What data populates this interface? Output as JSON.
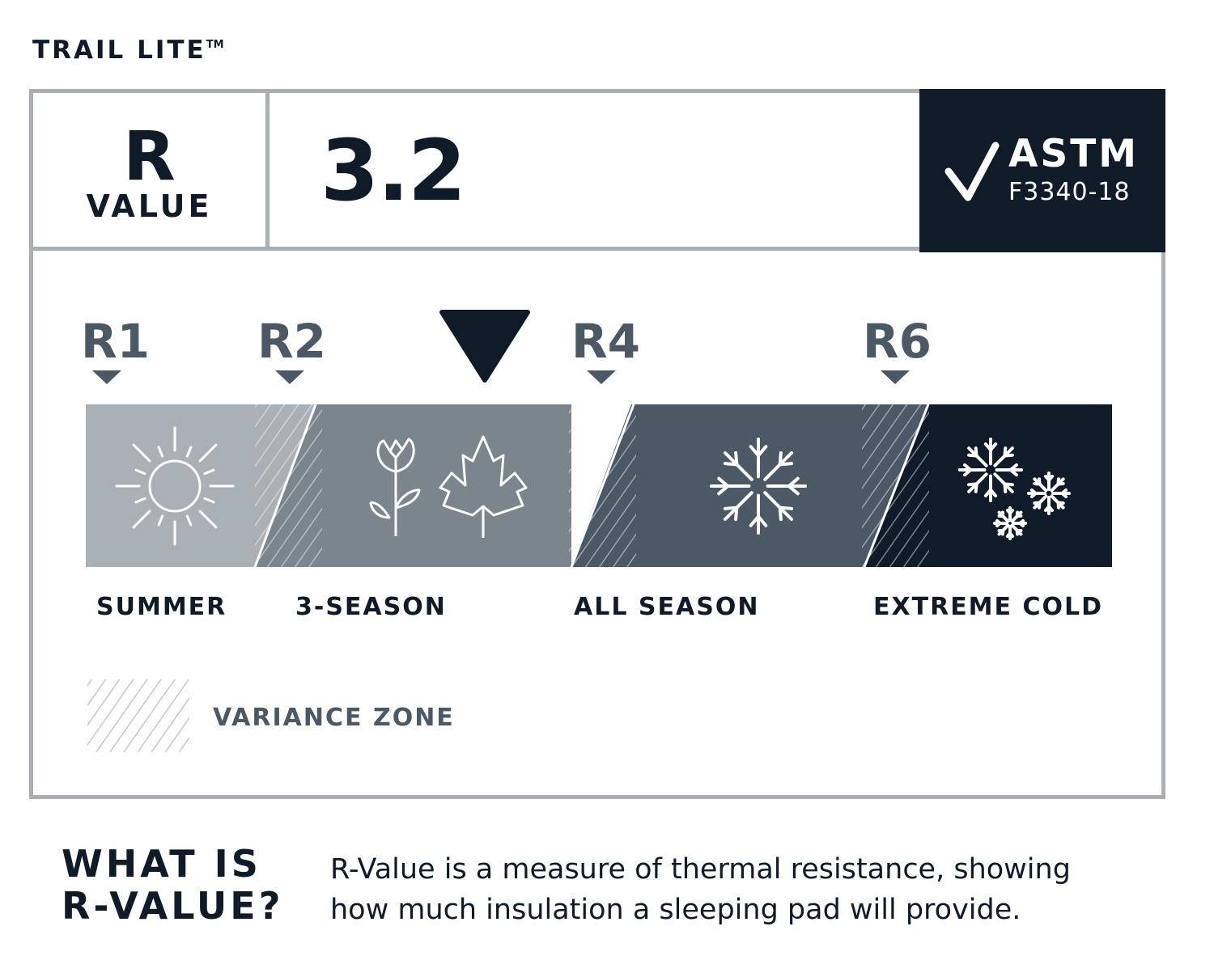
{
  "product": {
    "name": "TRAIL LITE",
    "trademark": "TM"
  },
  "rating": {
    "r_label": "R",
    "value_label": "VALUE",
    "value": "3.2",
    "value_numeric": 3.2
  },
  "certification": {
    "title": "ASTM",
    "standard": "F3340-18",
    "icon": "checkmark-icon"
  },
  "scale": {
    "markers": [
      {
        "label": "R1",
        "value": 1
      },
      {
        "label": "R2",
        "value": 2
      },
      {
        "label": "R4",
        "value": 4
      },
      {
        "label": "R6",
        "value": 6
      }
    ],
    "current_indicator": "3.2",
    "zones": [
      {
        "label": "SUMMER",
        "icon": "sun-icon",
        "color": "#a9b0b6"
      },
      {
        "label": "3-SEASON",
        "icon": "flower-and-leaf-icon",
        "color": "#7b858e"
      },
      {
        "label": "ALL SEASON",
        "icon": "snowflake-icon",
        "color": "#4b5866"
      },
      {
        "label": "EXTREME COLD",
        "icon": "snowflakes-icon",
        "color": "#101b2a"
      }
    ],
    "legend": {
      "label": "VARIANCE ZONE",
      "icon": "hatch-pattern-icon"
    }
  },
  "explainer": {
    "heading_line1": "WHAT IS",
    "heading_line2": "R-VALUE?",
    "text": "R-Value is a measure of thermal resistance, showing how much insulation a sleeping pad will provide."
  },
  "colors": {
    "dark": "#101b2a",
    "slate": "#4b5866",
    "border": "#a9afb3"
  }
}
